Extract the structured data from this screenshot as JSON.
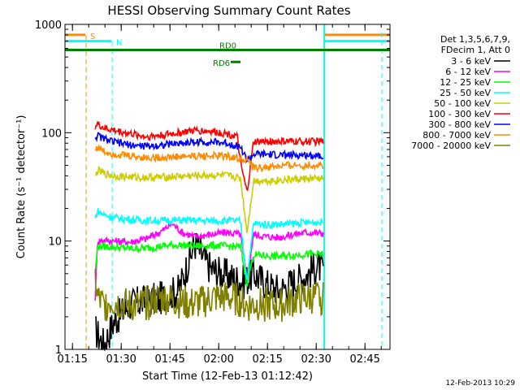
{
  "chart_data": {
    "type": "line",
    "title": "HESSI Observing Summary Count Rates",
    "xlabel": "Start Time (12-Feb-13 01:12:42)",
    "ylabel": "Count Rate (s⁻¹ detector⁻¹)",
    "x_unit": "minutes since 01:12:42",
    "xlim": [
      0,
      100
    ],
    "ylim": [
      1,
      1000
    ],
    "y_scale": "log",
    "x_ticks": [
      {
        "t": 2.3,
        "label": "01:15"
      },
      {
        "t": 17.3,
        "label": "01:30"
      },
      {
        "t": 32.3,
        "label": "01:45"
      },
      {
        "t": 47.3,
        "label": "02:00"
      },
      {
        "t": 62.3,
        "label": "02:15"
      },
      {
        "t": 77.3,
        "label": "02:30"
      },
      {
        "t": 92.3,
        "label": "02:45"
      }
    ],
    "y_ticks": [
      {
        "v": 1,
        "label": "1"
      },
      {
        "v": 10,
        "label": "10"
      },
      {
        "v": 100,
        "label": "100"
      },
      {
        "v": 1000,
        "label": "1000"
      }
    ],
    "legend": {
      "header": [
        "Det 1,3,5,6,7,9,",
        "FDecim 1, Att 0"
      ],
      "placement": "right"
    },
    "data_window": [
      9.3,
      79.6
    ],
    "attenuator_dip": [
      54.0,
      57.3
    ],
    "series": [
      {
        "name": "3 - 6 keV",
        "color": "#000000",
        "x": [
          9.3,
          12,
          15,
          20,
          25,
          30,
          35,
          38,
          40,
          42,
          45,
          50,
          55,
          58,
          62,
          66,
          70,
          74,
          78,
          79.6
        ],
        "values": [
          1.5,
          1.1,
          1.8,
          2.6,
          2.8,
          3.0,
          3.5,
          6.5,
          9.5,
          7.5,
          5.5,
          4.8,
          4.2,
          5.0,
          4.0,
          3.5,
          4.2,
          4.8,
          6.0,
          5.0
        ]
      },
      {
        "name": "6 - 12 keV",
        "color": "#ff00ff",
        "x": [
          9.3,
          10,
          12,
          15,
          20,
          25,
          30,
          33,
          36,
          40,
          45,
          50,
          54,
          56,
          58,
          62,
          66,
          70,
          74,
          79.6
        ],
        "values": [
          3.0,
          10.0,
          10.2,
          10.0,
          9.8,
          10.5,
          12.5,
          14.5,
          12.0,
          11.0,
          11.5,
          12.0,
          11.5,
          4.5,
          11.5,
          11.0,
          10.8,
          11.5,
          12.0,
          11.8
        ]
      },
      {
        "name": "12 - 25 keV",
        "color": "#00ff00",
        "x": [
          9.3,
          10,
          15,
          20,
          25,
          30,
          35,
          40,
          45,
          50,
          54,
          56,
          58,
          62,
          66,
          70,
          74,
          79.6
        ],
        "values": [
          5.0,
          9.0,
          8.8,
          8.5,
          8.6,
          9.0,
          9.2,
          9.0,
          9.1,
          9.0,
          8.8,
          4.0,
          7.5,
          7.3,
          7.2,
          7.4,
          7.6,
          7.5
        ]
      },
      {
        "name": "25 - 50 keV",
        "color": "#00ffff",
        "x": [
          9.3,
          10,
          12,
          15,
          20,
          25,
          30,
          35,
          40,
          45,
          50,
          54,
          56,
          58,
          62,
          66,
          70,
          74,
          79.6
        ],
        "values": [
          16.0,
          19.0,
          17.5,
          16.5,
          15.8,
          15.5,
          15.5,
          15.6,
          15.5,
          15.4,
          15.5,
          15.2,
          4.2,
          14.5,
          14.2,
          14.3,
          14.5,
          14.8,
          15.0
        ]
      },
      {
        "name": "50 - 100 keV",
        "color": "#cccc00",
        "x": [
          9.3,
          10,
          12,
          15,
          20,
          25,
          30,
          35,
          40,
          45,
          50,
          54,
          56,
          58,
          62,
          66,
          70,
          74,
          79.6
        ],
        "values": [
          38.0,
          45.0,
          42.0,
          40.0,
          39.0,
          38.5,
          39.0,
          39.5,
          40.0,
          40.5,
          40.0,
          38.0,
          12.0,
          36.0,
          36.0,
          36.5,
          37.0,
          37.5,
          37.5
        ]
      },
      {
        "name": "100 - 300 keV",
        "color": "#ff0000",
        "x": [
          9.3,
          10,
          12,
          15,
          20,
          25,
          30,
          35,
          40,
          45,
          50,
          53,
          54,
          56,
          57.3,
          58,
          62,
          66,
          70,
          74,
          79.6
        ],
        "values": [
          115,
          120,
          110,
          105,
          98,
          92,
          95,
          100,
          105,
          103,
          98,
          92,
          52,
          28,
          55,
          82,
          83,
          83,
          83,
          83,
          83
        ]
      },
      {
        "name": "300 - 800 keV",
        "color": "#0000ff",
        "x": [
          9.3,
          10,
          12,
          15,
          20,
          25,
          30,
          35,
          40,
          45,
          50,
          54,
          56,
          58,
          62,
          66,
          70,
          74,
          79.6
        ],
        "values": [
          90,
          94,
          88,
          82,
          77,
          75,
          77,
          80,
          82,
          82,
          80,
          74,
          55,
          63,
          63,
          62,
          62,
          62,
          62
        ]
      },
      {
        "name": "800 - 7000 keV",
        "color": "#ff8c00",
        "x": [
          9.3,
          10,
          12,
          15,
          20,
          25,
          30,
          35,
          40,
          45,
          50,
          54,
          56,
          58,
          62,
          66,
          70,
          74,
          79.6
        ],
        "values": [
          70,
          74,
          67,
          64,
          61,
          59,
          59,
          60,
          61,
          61,
          61,
          57,
          57,
          47,
          48,
          49,
          50,
          50,
          50
        ]
      },
      {
        "name": "7000 - 20000 keV",
        "color": "#808000",
        "x": [
          9.3,
          10,
          12,
          14,
          18,
          22,
          26,
          30,
          34,
          38,
          42,
          46,
          50,
          54,
          56,
          58,
          62,
          66,
          70,
          74,
          79.6
        ],
        "values": [
          4.5,
          3.0,
          2.5,
          2.8,
          2.6,
          2.5,
          2.7,
          3.0,
          2.8,
          2.6,
          2.7,
          3.0,
          3.0,
          2.8,
          2.5,
          2.6,
          2.6,
          2.5,
          2.8,
          3.0,
          3.0
        ]
      }
    ],
    "event_markers": [
      {
        "label": "S",
        "kind": "saa",
        "color": "#ff8c00",
        "start": 6.5,
        "end": 79.8,
        "y": 800
      },
      {
        "label": "N",
        "kind": "night",
        "color": "#00ffff",
        "start": 14.5,
        "end": 79.8,
        "y": 700
      },
      {
        "label": "RD0",
        "kind": "decimation",
        "color": "#008000",
        "start": 0,
        "end": 100,
        "y": 580
      },
      {
        "label": "RD6",
        "kind": "decimation",
        "color": "#008000",
        "start": 51.0,
        "end": 54.0,
        "y": 450
      }
    ],
    "grid": false
  },
  "footer": {
    "timestamp": "12-Feb-2013 10:29"
  }
}
